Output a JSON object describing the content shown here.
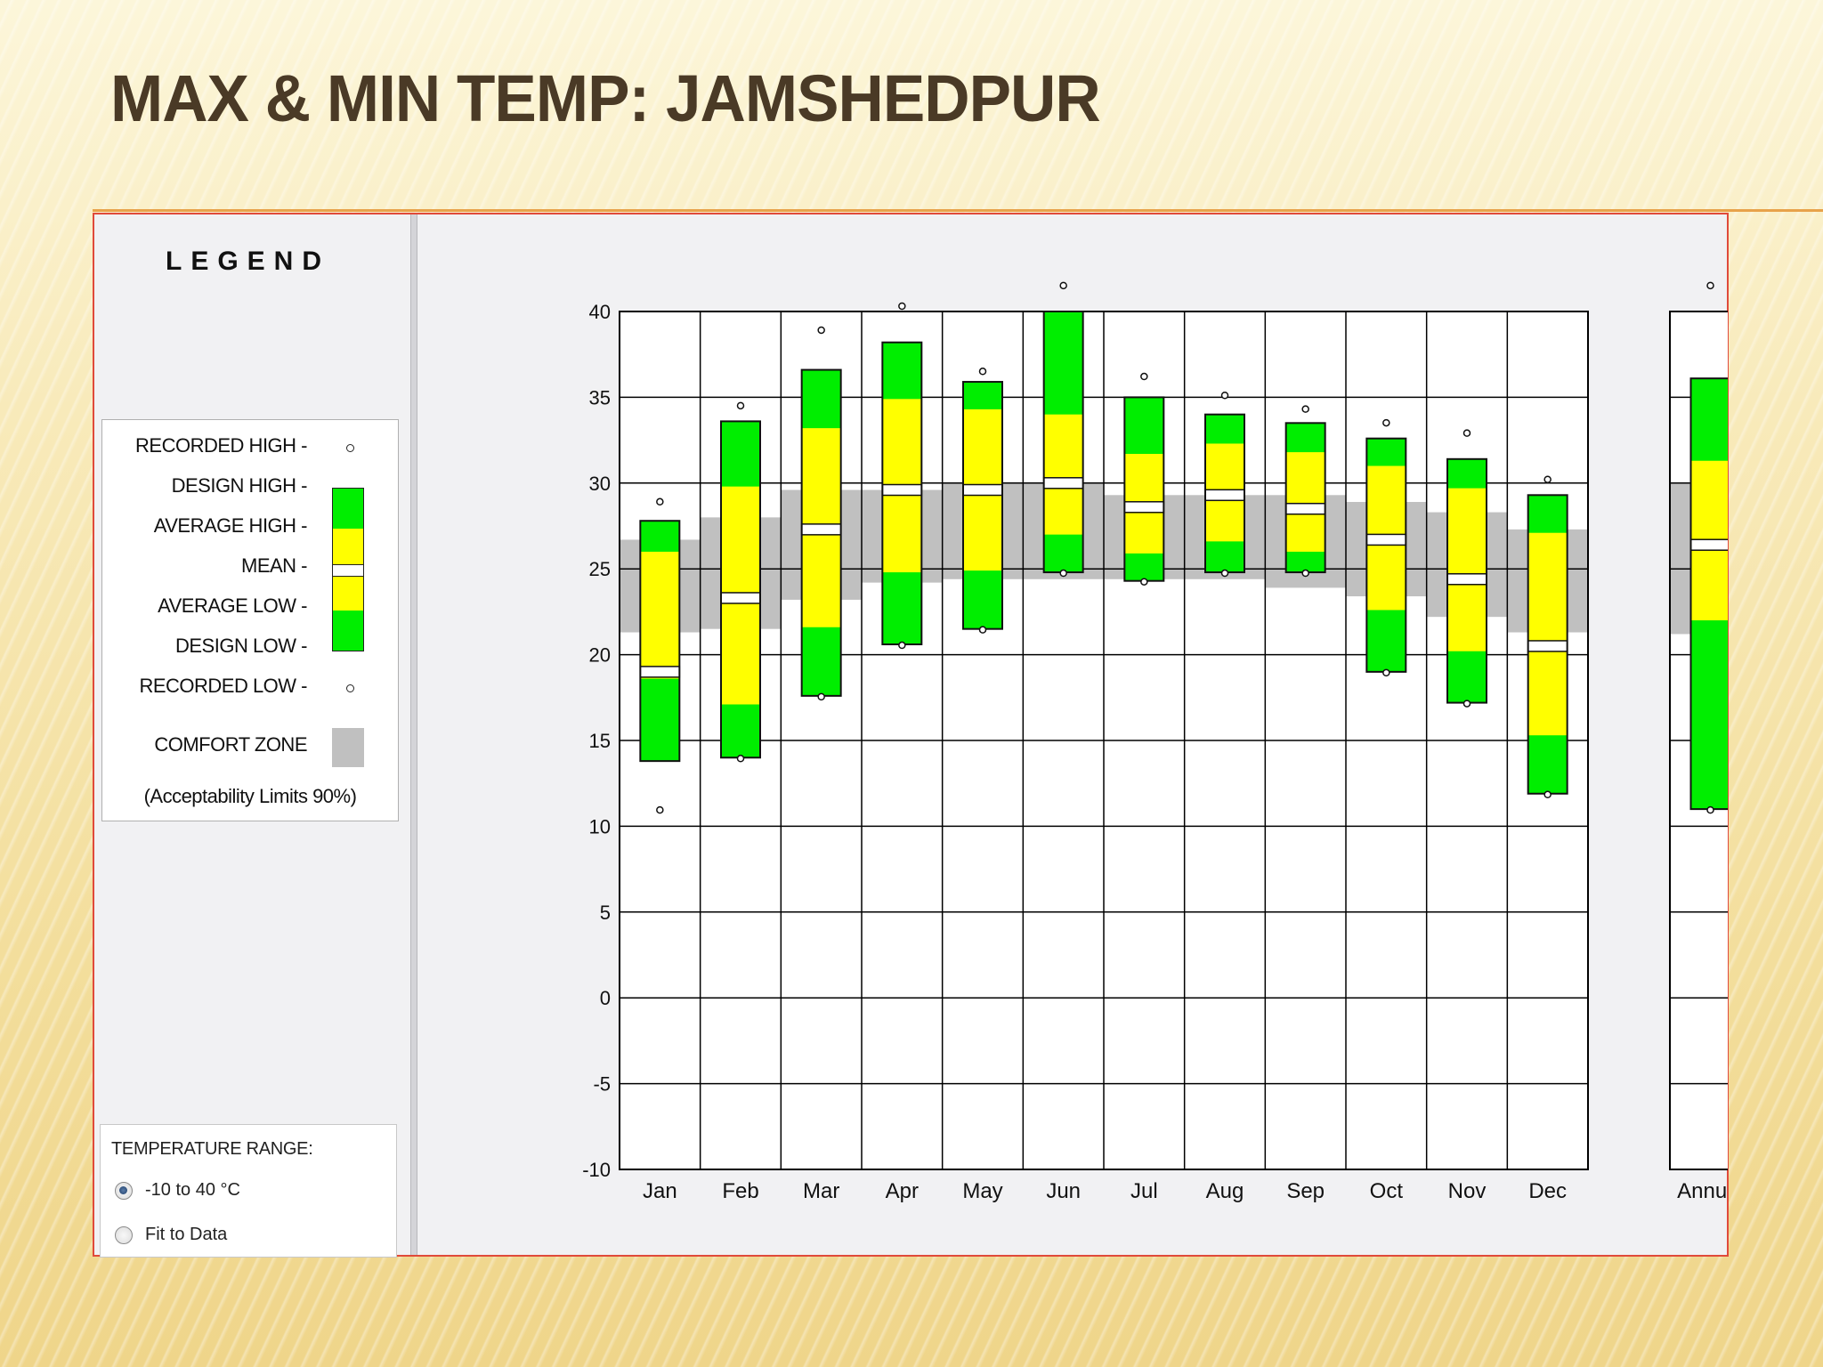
{
  "slide": {
    "title": "MAX & MIN TEMP: JAMSHEDPUR"
  },
  "legend": {
    "heading": "LEGEND",
    "recorded_high": "RECORDED HIGH -",
    "design_high": "DESIGN HIGH -",
    "average_high": "AVERAGE HIGH -",
    "mean": "MEAN -",
    "average_low": "AVERAGE LOW -",
    "design_low": "DESIGN LOW -",
    "recorded_low": "RECORDED LOW -",
    "comfort_zone": "COMFORT ZONE",
    "acceptability": "(Acceptability Limits 90%)"
  },
  "range_control": {
    "title": "TEMPERATURE RANGE:",
    "options": [
      {
        "label": "-10 to 40 °C",
        "selected": true
      },
      {
        "label": "Fit to Data",
        "selected": false
      }
    ]
  },
  "colors": {
    "design_band": "#00ee00",
    "average_band": "#ffff00",
    "comfort_zone": "#c0c0c0",
    "grid": "#000000"
  },
  "chart_data": {
    "type": "box-range",
    "ylim": [
      -10,
      40
    ],
    "yticks": [
      "40",
      "35",
      "30",
      "25",
      "20",
      "15",
      "10",
      "5",
      "0",
      "-5",
      "-10"
    ],
    "categories": [
      "Jan",
      "Feb",
      "Mar",
      "Apr",
      "May",
      "Jun",
      "Jul",
      "Aug",
      "Sep",
      "Oct",
      "Nov",
      "Dec"
    ],
    "series": [
      {
        "recorded_high": 28.6,
        "design_high": 27.8,
        "average_high": 26.0,
        "mean": 19.0,
        "average_low": 18.6,
        "design_low": 13.8,
        "recorded_low": 11.0,
        "comfort": [
          21.3,
          26.7
        ]
      },
      {
        "recorded_high": 34.2,
        "design_high": 33.6,
        "average_high": 29.8,
        "mean": 23.3,
        "average_low": 17.1,
        "design_low": 14.0,
        "recorded_low": 14.0,
        "comfort": [
          21.5,
          28.0
        ]
      },
      {
        "recorded_high": 38.6,
        "design_high": 36.6,
        "average_high": 33.2,
        "mean": 27.3,
        "average_low": 21.6,
        "design_low": 17.6,
        "recorded_low": 17.6,
        "comfort": [
          23.2,
          29.6
        ]
      },
      {
        "recorded_high": 40.0,
        "design_high": 38.2,
        "average_high": 34.9,
        "mean": 29.6,
        "average_low": 24.8,
        "design_low": 20.6,
        "recorded_low": 20.6,
        "comfort": [
          24.2,
          29.6
        ]
      },
      {
        "recorded_high": 36.2,
        "design_high": 35.9,
        "average_high": 34.3,
        "mean": 29.6,
        "average_low": 24.9,
        "design_low": 21.5,
        "recorded_low": 21.5,
        "comfort": [
          24.4,
          30.0
        ]
      },
      {
        "recorded_high": 41.2,
        "design_high": 40.0,
        "average_high": 34.0,
        "mean": 30.0,
        "average_low": 27.0,
        "design_low": 24.8,
        "recorded_low": 24.8,
        "comfort": [
          24.4,
          30.0
        ]
      },
      {
        "recorded_high": 35.9,
        "design_high": 35.0,
        "average_high": 31.7,
        "mean": 28.6,
        "average_low": 25.9,
        "design_low": 24.3,
        "recorded_low": 24.3,
        "comfort": [
          24.4,
          29.3
        ]
      },
      {
        "recorded_high": 34.8,
        "design_high": 34.0,
        "average_high": 32.3,
        "mean": 29.3,
        "average_low": 26.6,
        "design_low": 24.8,
        "recorded_low": 24.8,
        "comfort": [
          24.4,
          29.3
        ]
      },
      {
        "recorded_high": 34.0,
        "design_high": 33.5,
        "average_high": 31.8,
        "mean": 28.5,
        "average_low": 26.0,
        "design_low": 24.8,
        "recorded_low": 24.8,
        "comfort": [
          23.9,
          29.3
        ]
      },
      {
        "recorded_high": 33.2,
        "design_high": 32.6,
        "average_high": 31.0,
        "mean": 26.7,
        "average_low": 22.6,
        "design_low": 19.0,
        "recorded_low": 19.0,
        "comfort": [
          23.4,
          28.9
        ]
      },
      {
        "recorded_high": 32.6,
        "design_high": 31.4,
        "average_high": 29.7,
        "mean": 24.4,
        "average_low": 20.2,
        "design_low": 17.2,
        "recorded_low": 17.2,
        "comfort": [
          22.2,
          28.3
        ]
      },
      {
        "recorded_high": 29.9,
        "design_high": 29.3,
        "average_high": 27.1,
        "mean": 20.5,
        "average_low": 15.3,
        "design_low": 11.9,
        "recorded_low": 11.9,
        "comfort": [
          21.3,
          27.3
        ]
      }
    ],
    "annual": {
      "label": "Annual",
      "recorded_high": 41.2,
      "design_high": 36.1,
      "average_high": 31.3,
      "mean": 26.4,
      "average_low": 22.0,
      "design_low": 11.0,
      "recorded_low": 11.0,
      "comfort": [
        21.2,
        30.0
      ]
    }
  }
}
